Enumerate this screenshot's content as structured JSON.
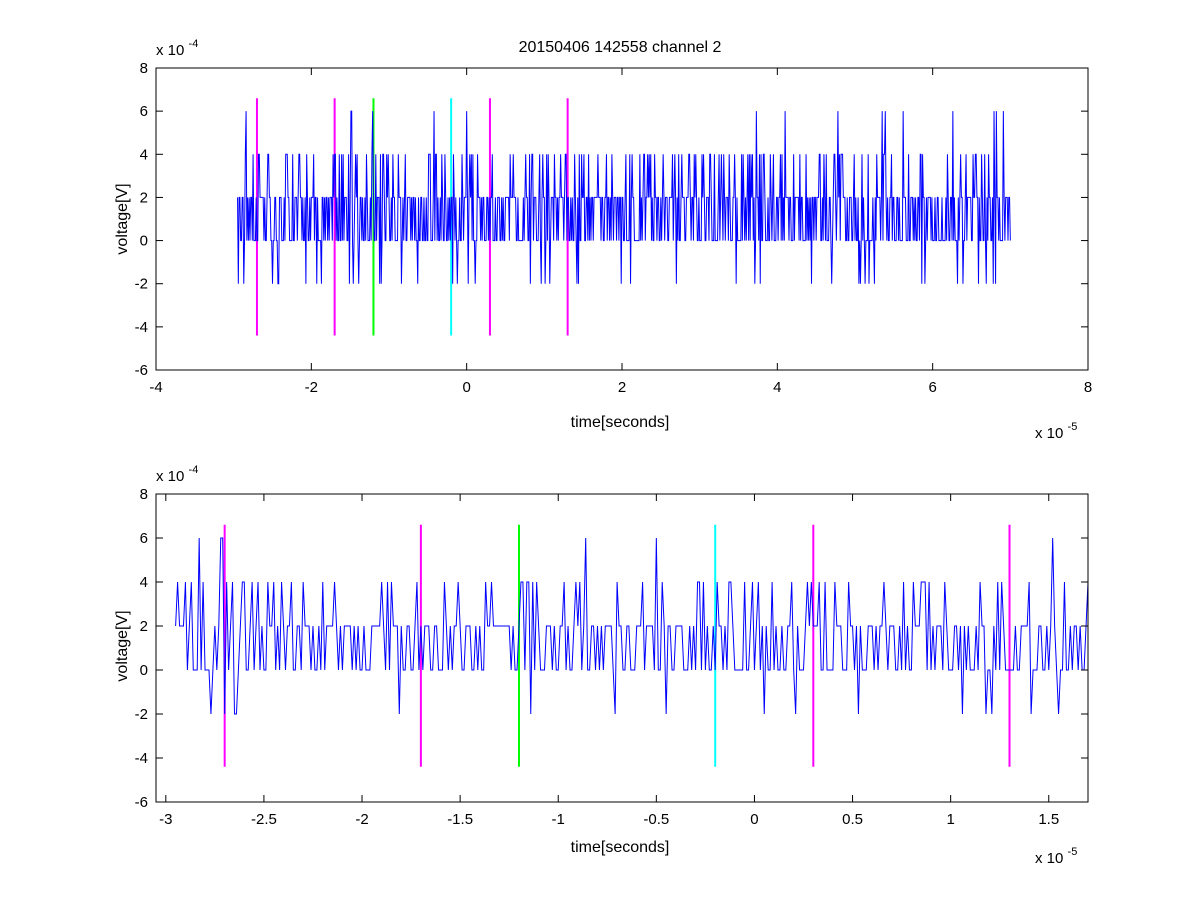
{
  "figure": {
    "title": "20150406 142558 channel 2",
    "background": "#ffffff"
  },
  "chart_data": [
    {
      "type": "line",
      "title": "20150406 142558 channel 2",
      "xlabel": "time[seconds]",
      "ylabel": "voltage[V]",
      "x_exponent_label": "x 10",
      "x_exponent": "-5",
      "y_exponent_label": "x 10",
      "y_exponent": "-4",
      "xlim": [
        -4,
        8
      ],
      "ylim": [
        -6,
        8
      ],
      "xticks": [
        -4,
        -2,
        0,
        2,
        4,
        6,
        8
      ],
      "yticks": [
        -6,
        -4,
        -2,
        0,
        2,
        4,
        6,
        8
      ],
      "grid": false,
      "signal": {
        "color": "#0000ff",
        "x_start": -2.95,
        "x_end": 7.0,
        "dx": 0.01,
        "levels": [
          -4,
          -2,
          0,
          2,
          4,
          6
        ]
      },
      "markers": [
        {
          "x": -2.7,
          "y_min": -4.4,
          "y_max": 6.6,
          "color": "#ff00ff"
        },
        {
          "x": -1.7,
          "y_min": -4.4,
          "y_max": 6.6,
          "color": "#ff00ff"
        },
        {
          "x": -1.2,
          "y_min": -4.4,
          "y_max": 6.6,
          "color": "#00ff00"
        },
        {
          "x": -0.2,
          "y_min": -4.4,
          "y_max": 6.6,
          "color": "#00ffff"
        },
        {
          "x": 0.3,
          "y_min": -4.4,
          "y_max": 6.6,
          "color": "#ff00ff"
        },
        {
          "x": 1.3,
          "y_min": -4.4,
          "y_max": 6.6,
          "color": "#ff00ff"
        }
      ]
    },
    {
      "type": "line",
      "title": "",
      "xlabel": "time[seconds]",
      "ylabel": "voltage[V]",
      "x_exponent_label": "x 10",
      "x_exponent": "-5",
      "y_exponent_label": "x 10",
      "y_exponent": "-4",
      "xlim": [
        -3.05,
        1.7
      ],
      "ylim": [
        -6,
        8
      ],
      "xticks": [
        -3,
        -2.5,
        -2,
        -1.5,
        -1,
        -0.5,
        0,
        0.5,
        1,
        1.5
      ],
      "yticks": [
        -6,
        -4,
        -2,
        0,
        2,
        4,
        6,
        8
      ],
      "grid": false,
      "signal": {
        "color": "#0000ff",
        "x_start": -2.95,
        "x_end": 1.7,
        "dx": 0.01,
        "levels": [
          -2,
          0,
          2,
          4,
          6
        ]
      },
      "markers": [
        {
          "x": -2.7,
          "y_min": -4.4,
          "y_max": 6.6,
          "color": "#ff00ff"
        },
        {
          "x": -1.7,
          "y_min": -4.4,
          "y_max": 6.6,
          "color": "#ff00ff"
        },
        {
          "x": -1.2,
          "y_min": -4.4,
          "y_max": 6.6,
          "color": "#00ff00"
        },
        {
          "x": -0.2,
          "y_min": -4.4,
          "y_max": 6.6,
          "color": "#00ffff"
        },
        {
          "x": 0.3,
          "y_min": -4.4,
          "y_max": 6.6,
          "color": "#ff00ff"
        },
        {
          "x": 1.3,
          "y_min": -4.4,
          "y_max": 6.6,
          "color": "#ff00ff"
        }
      ]
    }
  ]
}
